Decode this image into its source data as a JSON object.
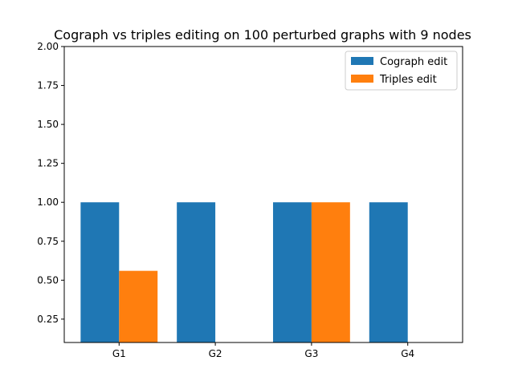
{
  "chart_data": {
    "type": "bar",
    "title": "Cograph vs triples editing on 100 perturbed graphs with 9 nodes",
    "xlabel": "",
    "ylabel": "",
    "categories": [
      "G1",
      "G2",
      "G3",
      "G4"
    ],
    "series": [
      {
        "name": "Cograph edit",
        "values": [
          1.0,
          1.0,
          1.0,
          1.0
        ],
        "color": "#1f77b4"
      },
      {
        "name": "Triples edit",
        "values": [
          0.56,
          0.0,
          1.0,
          0.0
        ],
        "color": "#ff7f0e"
      }
    ],
    "ylim": [
      0.1,
      2.0
    ],
    "yticks": [
      "0.25",
      "0.50",
      "0.75",
      "1.00",
      "1.25",
      "1.50",
      "1.75",
      "2.00"
    ],
    "grid": false,
    "legend_position": "top-right"
  }
}
